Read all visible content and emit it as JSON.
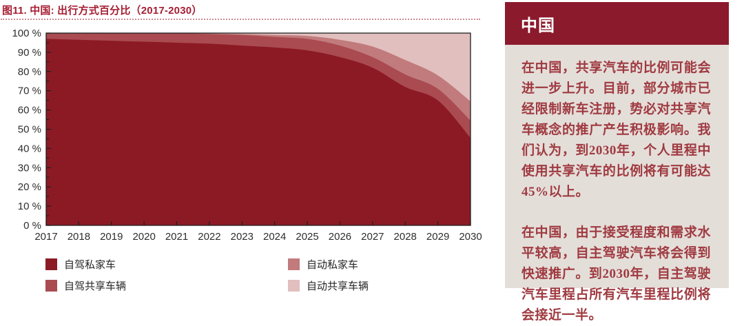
{
  "figure_title": "图11. 中国: 出行方式百分比（2017-2030）",
  "chart_data": {
    "type": "area",
    "stacked": true,
    "title": "图11. 中国: 出行方式百分比（2017-2030）",
    "x": [
      2017,
      2018,
      2019,
      2020,
      2021,
      2022,
      2023,
      2024,
      2025,
      2026,
      2027,
      2028,
      2029,
      2030
    ],
    "xlabel": "",
    "ylabel": "",
    "ylim": [
      0,
      100
    ],
    "ytick_step": 10,
    "ytick_suffix": " %",
    "grid": false,
    "legend_position": "bottom",
    "series": [
      {
        "name": "自驾私家车",
        "color": "#8C1A25",
        "values": [
          97,
          96.5,
          96,
          95.5,
          95,
          94.5,
          93.5,
          92.5,
          91,
          87.5,
          82,
          72,
          65,
          45.5
        ]
      },
      {
        "name": "自驾共享车辆",
        "color": "#A94B50",
        "values": [
          3,
          3.5,
          4,
          4.5,
          5,
          5,
          5.5,
          5.5,
          6,
          6,
          5.5,
          6.5,
          6,
          9
        ]
      },
      {
        "name": "自动私家车",
        "color": "#C17B7D",
        "values": [
          0,
          0,
          0,
          0,
          0,
          0.3,
          0.5,
          1,
          1.5,
          3,
          5.5,
          7.5,
          7,
          10
        ]
      },
      {
        "name": "自动共享车辆",
        "color": "#E1BFBE",
        "values": [
          0,
          0,
          0,
          0,
          0,
          0.2,
          0.5,
          1,
          1.5,
          3.5,
          7,
          14,
          22,
          35.5
        ]
      }
    ]
  },
  "sidebar": {
    "title": "中国",
    "paragraphs": [
      "在中国，共享汽车的比例可能会进一步上升。目前，部分城市已经限制新车注册，势必对共享汽车概念的推广产生积极影响。我们认为，到2030年，个人里程中使用共享汽车的比例将有可能达45%以上。",
      "在中国，由于接受程度和需求水平较高，自主驾驶汽车将会得到快速推广。到2030年，自主驾驶汽车里程占所有汽车里程比例将会接近一半。"
    ]
  },
  "colors": {
    "title_red": "#A51E33",
    "separator_dot": "#CC8A92",
    "sidebar_header_bg": "#8B1A2C",
    "sidebar_body_bg": "#E4DED9",
    "sidebar_text": "#9F3A40",
    "axis_text": "#2E2E2E",
    "plot_frame": "#1F1F1F"
  }
}
